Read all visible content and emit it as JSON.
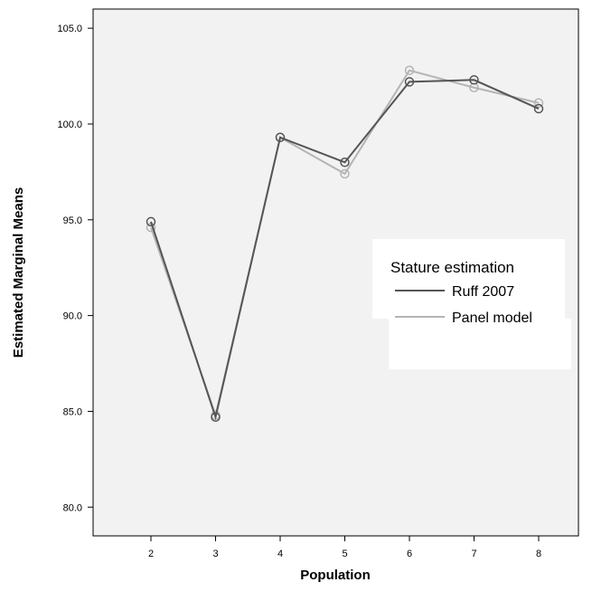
{
  "chart_data": {
    "type": "line",
    "xlabel": "Population",
    "ylabel": "Estimated Marginal Means",
    "x": [
      2,
      3,
      4,
      5,
      6,
      7,
      8
    ],
    "x_ticks": [
      "2",
      "3",
      "4",
      "5",
      "6",
      "7",
      "8"
    ],
    "y_ticks": [
      "80.0",
      "85.0",
      "90.0",
      "95.0",
      "100.0",
      "105.0"
    ],
    "ylim": [
      78.5,
      106
    ],
    "grid": false,
    "legend": {
      "title": "Stature estimation",
      "placement": "right"
    },
    "series": [
      {
        "name": "Ruff 2007",
        "color": "#555555",
        "values": [
          94.9,
          84.7,
          99.3,
          98.0,
          102.2,
          102.3,
          100.8
        ]
      },
      {
        "name": "Panel model",
        "color": "#b4b4b4",
        "values": [
          94.6,
          84.8,
          99.3,
          97.4,
          102.8,
          101.9,
          101.1
        ]
      }
    ]
  }
}
